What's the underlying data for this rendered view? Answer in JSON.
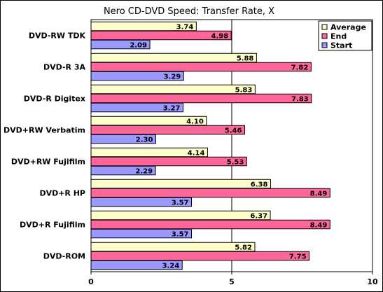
{
  "chart_data": {
    "type": "bar",
    "orientation": "horizontal",
    "title": "Nero CD-DVD Speed: Transfer Rate, X",
    "xlabel": "",
    "ylabel": "",
    "xlim": [
      0,
      10
    ],
    "xticks": [
      0,
      5,
      10
    ],
    "grid": "vertical",
    "legend_position": "top-right",
    "categories": [
      "DVD-RW TDK",
      "DVD-R 3A",
      "DVD-R Digitex",
      "DVD+RW Verbatim",
      "DVD+RW Fujifilm",
      "DVD+R HP",
      "DVD+R Fujifilm",
      "DVD-ROM"
    ],
    "series": [
      {
        "name": "Average",
        "color": "#FFFFCC",
        "values": [
          3.74,
          5.88,
          5.83,
          4.1,
          4.14,
          6.38,
          6.37,
          5.82
        ],
        "labels": [
          "3.74",
          "5.88",
          "5.83",
          "4.10",
          "4.14",
          "6.38",
          "6.37",
          "5.82"
        ]
      },
      {
        "name": "End",
        "color": "#FF6699",
        "values": [
          4.98,
          7.82,
          7.83,
          5.46,
          5.53,
          8.49,
          8.49,
          7.75
        ],
        "labels": [
          "4.98",
          "7.82",
          "7.83",
          "5.46",
          "5.53",
          "8.49",
          "8.49",
          "7.75"
        ]
      },
      {
        "name": "Start",
        "color": "#9999FF",
        "values": [
          2.09,
          3.29,
          3.27,
          2.3,
          2.29,
          3.57,
          3.57,
          3.24
        ],
        "labels": [
          "2.09",
          "3.29",
          "3.27",
          "2.30",
          "2.29",
          "3.57",
          "3.57",
          "3.24"
        ]
      }
    ]
  }
}
